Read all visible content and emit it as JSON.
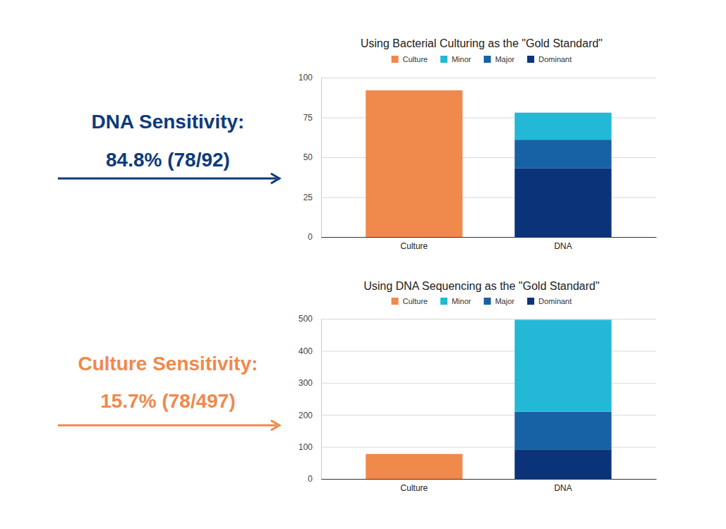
{
  "chart_data": [
    {
      "type": "bar",
      "title": "Using Bacterial Culturing as the \"Gold Standard\"",
      "categories": [
        "Culture",
        "DNA"
      ],
      "series": [
        {
          "name": "Culture",
          "color": "#f0894c",
          "values": [
            92,
            null
          ]
        },
        {
          "name": "Minor",
          "color": "#22b8d6",
          "values": [
            null,
            17
          ]
        },
        {
          "name": "Major",
          "color": "#1762a4",
          "values": [
            null,
            18
          ]
        },
        {
          "name": "Dominant",
          "color": "#0b3379",
          "values": [
            null,
            43
          ]
        }
      ],
      "ylim": [
        0,
        100
      ],
      "yticks": [
        0,
        25,
        50,
        75,
        100
      ],
      "stacked": true,
      "grid": true,
      "legend": "top",
      "annotations": [
        "DNA Sensitivity:",
        "84.8% (78/92)"
      ]
    },
    {
      "type": "bar",
      "title": "Using DNA Sequencing as the \"Gold Standard\"",
      "categories": [
        "Culture",
        "DNA"
      ],
      "series": [
        {
          "name": "Culture",
          "color": "#f0894c",
          "values": [
            78,
            null
          ]
        },
        {
          "name": "Minor",
          "color": "#22b8d6",
          "values": [
            null,
            287
          ]
        },
        {
          "name": "Major",
          "color": "#1762a4",
          "values": [
            null,
            118
          ]
        },
        {
          "name": "Dominant",
          "color": "#0b3379",
          "values": [
            null,
            92
          ]
        }
      ],
      "ylim": [
        0,
        500
      ],
      "yticks": [
        0,
        100,
        200,
        300,
        400,
        500
      ],
      "stacked": true,
      "grid": true,
      "legend": "top",
      "annotations": [
        "Culture Sensitivity:",
        "15.7% (78/497)"
      ]
    }
  ]
}
